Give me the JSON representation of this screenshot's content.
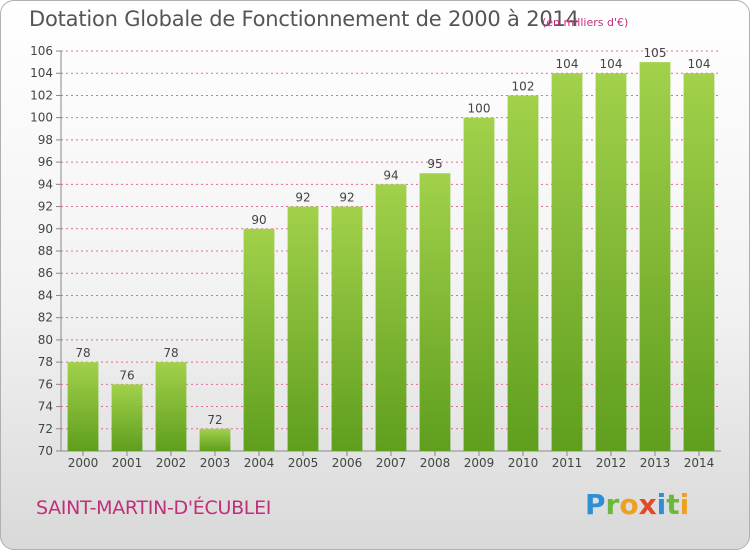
{
  "header": {
    "title": "Dotation Globale de Fonctionnement de 2000 à 2014",
    "unit_note": "(en milliers d'€)"
  },
  "footer": {
    "place": "SAINT-MARTIN-D'ÉCUBLEI",
    "logo_letters": [
      "P",
      "r",
      "o",
      "x",
      "i",
      "t",
      "i"
    ]
  },
  "colors": {
    "bar_light": "#a2d14b",
    "bar_dark": "#5f9e1e",
    "grid": "#e06aa6",
    "axis_text": "#444444",
    "accent": "#c0307a"
  },
  "chart_data": {
    "type": "bar",
    "title": "Dotation Globale de Fonctionnement de 2000 à 2014",
    "subtitle": "(en milliers d'€)",
    "xlabel": "",
    "ylabel": "",
    "categories": [
      "2000",
      "2001",
      "2002",
      "2003",
      "2004",
      "2005",
      "2006",
      "2007",
      "2008",
      "2009",
      "2010",
      "2011",
      "2012",
      "2013",
      "2014"
    ],
    "values": [
      78,
      76,
      78,
      72,
      90,
      92,
      92,
      94,
      95,
      100,
      102,
      104,
      104,
      105,
      104
    ],
    "ylim": [
      70,
      106
    ],
    "yticks": [
      70,
      72,
      74,
      76,
      78,
      80,
      82,
      84,
      86,
      88,
      90,
      92,
      94,
      96,
      98,
      100,
      102,
      104,
      106
    ],
    "grid": true
  }
}
